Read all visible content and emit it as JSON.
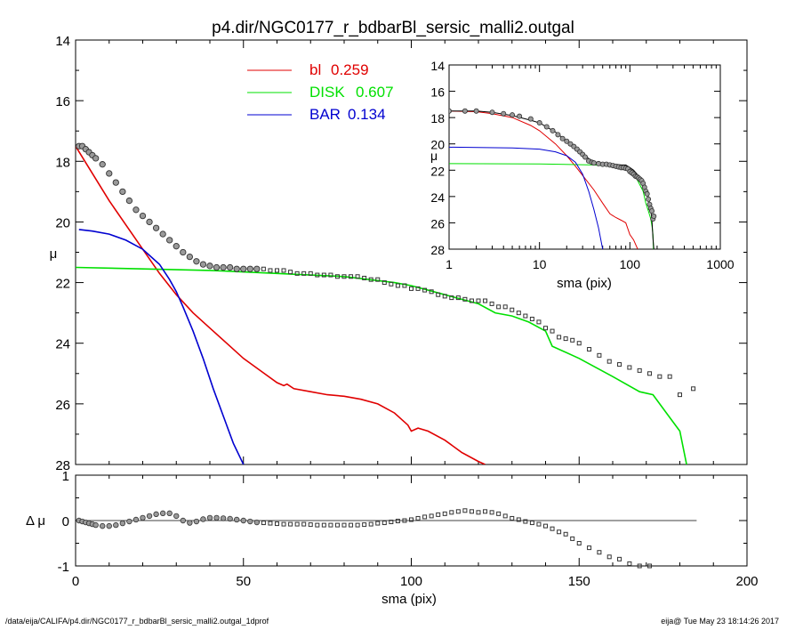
{
  "title": "p4.dir/NGC0177_r_bdbarBl_sersic_malli2.outgal",
  "footer_left": "/data/eija/CALIFA/p4.dir/NGC0177_r_bdbarBl_sersic_malli2.outgal_1dprof",
  "footer_right": "eija@  Tue May 23 18:14:26 2017",
  "colors": {
    "bulge": "#e00000",
    "disk": "#00e000",
    "bar": "#0000d0",
    "data": "#555555",
    "axes": "#000000"
  },
  "chart_data": [
    {
      "id": "main",
      "type": "line",
      "xlabel": "",
      "ylabel": "μ",
      "xlim": [
        0,
        200
      ],
      "ylim": [
        28,
        14
      ],
      "y_ticks": [
        14,
        16,
        18,
        20,
        22,
        24,
        26,
        28
      ],
      "legend": [
        {
          "label": "bl",
          "value": "0.259",
          "color": "#e00000"
        },
        {
          "label": "DISK",
          "value": "0.607",
          "color": "#00e000"
        },
        {
          "label": "BAR",
          "value": "0.134",
          "color": "#0000d0"
        }
      ],
      "series": [
        {
          "name": "bl",
          "color": "#e00000",
          "x": [
            0,
            5,
            10,
            15,
            20,
            25,
            30,
            35,
            40,
            45,
            50,
            55,
            60,
            62,
            63,
            65,
            70,
            75,
            80,
            85,
            90,
            95,
            99,
            100,
            102,
            105,
            110,
            115,
            120,
            122
          ],
          "y": [
            17.5,
            18.4,
            19.3,
            20.1,
            20.9,
            21.7,
            22.4,
            23.0,
            23.5,
            24.0,
            24.5,
            24.9,
            25.3,
            25.4,
            25.35,
            25.5,
            25.6,
            25.7,
            25.75,
            25.85,
            26.0,
            26.3,
            26.7,
            26.9,
            26.8,
            26.9,
            27.2,
            27.6,
            27.9,
            28.0
          ]
        },
        {
          "name": "DISK",
          "color": "#00e000",
          "x": [
            0,
            20,
            40,
            60,
            80,
            95,
            100,
            110,
            120,
            125,
            130,
            135,
            140,
            142,
            150,
            160,
            168,
            172,
            176,
            180,
            182
          ],
          "y": [
            21.5,
            21.55,
            21.6,
            21.7,
            21.8,
            22.0,
            22.1,
            22.4,
            22.7,
            23.0,
            23.1,
            23.3,
            23.6,
            24.1,
            24.5,
            25.1,
            25.6,
            25.7,
            26.3,
            26.9,
            28.0
          ]
        },
        {
          "name": "BAR",
          "color": "#0000d0",
          "x": [
            1,
            5,
            10,
            15,
            20,
            25,
            28,
            30,
            32,
            35,
            38,
            41,
            44,
            47,
            50
          ],
          "y": [
            20.25,
            20.3,
            20.4,
            20.6,
            20.9,
            21.4,
            21.9,
            22.3,
            22.8,
            23.6,
            24.5,
            25.5,
            26.4,
            27.3,
            28.0
          ]
        },
        {
          "name": "",
          "color": "#555555",
          "role": "data",
          "x": [
            1,
            2,
            3,
            4,
            5,
            6,
            8,
            10,
            12,
            14,
            16,
            18,
            20,
            22,
            24,
            26,
            28,
            30,
            32,
            34,
            36,
            38,
            40,
            42,
            44,
            46,
            48,
            50,
            52,
            54,
            56,
            58,
            60,
            62,
            64,
            66,
            68,
            70,
            72,
            74,
            76,
            78,
            80,
            82,
            84,
            86,
            88,
            90,
            92,
            94,
            96,
            98,
            100,
            102,
            104,
            106,
            108,
            110,
            112,
            114,
            116,
            118,
            120,
            122,
            124,
            126,
            128,
            130,
            132,
            134,
            136,
            138,
            140,
            142,
            144,
            146,
            148,
            150,
            153,
            156,
            159,
            162,
            165,
            168,
            171,
            174,
            177,
            180,
            184
          ],
          "y": [
            17.5,
            17.5,
            17.6,
            17.7,
            17.8,
            17.9,
            18.1,
            18.4,
            18.7,
            19.0,
            19.3,
            19.6,
            19.8,
            20.0,
            20.2,
            20.4,
            20.6,
            20.8,
            21.0,
            21.15,
            21.3,
            21.4,
            21.45,
            21.5,
            21.5,
            21.5,
            21.55,
            21.55,
            21.55,
            21.55,
            21.55,
            21.6,
            21.6,
            21.6,
            21.65,
            21.7,
            21.7,
            21.7,
            21.75,
            21.75,
            21.75,
            21.8,
            21.8,
            21.8,
            21.8,
            21.85,
            21.9,
            21.9,
            22.0,
            22.05,
            22.1,
            22.1,
            22.2,
            22.2,
            22.25,
            22.3,
            22.4,
            22.45,
            22.5,
            22.5,
            22.55,
            22.6,
            22.6,
            22.6,
            22.7,
            22.8,
            22.8,
            22.9,
            23.0,
            23.1,
            23.2,
            23.3,
            23.5,
            23.6,
            23.8,
            23.85,
            23.9,
            24.0,
            24.2,
            24.4,
            24.6,
            24.7,
            24.8,
            24.9,
            25.0,
            25.1,
            25.1,
            25.7,
            25.5
          ]
        }
      ]
    },
    {
      "id": "residual",
      "type": "scatter",
      "xlabel": "sma (pix)",
      "ylabel": "Δ μ",
      "xlim": [
        0,
        200
      ],
      "ylim": [
        -1,
        1
      ],
      "x_ticks": [
        0,
        50,
        100,
        150,
        200
      ],
      "y_ticks": [
        1,
        0,
        -1
      ],
      "zero_line_to": 185,
      "series": [
        {
          "name": "",
          "color": "#555555",
          "x": [
            1,
            2,
            3,
            4,
            5,
            6,
            8,
            10,
            12,
            14,
            16,
            18,
            20,
            22,
            24,
            26,
            28,
            30,
            32,
            34,
            36,
            38,
            40,
            42,
            44,
            46,
            48,
            50,
            52,
            54,
            56,
            58,
            60,
            62,
            64,
            66,
            68,
            70,
            72,
            74,
            76,
            78,
            80,
            82,
            84,
            86,
            88,
            90,
            92,
            94,
            96,
            98,
            100,
            102,
            104,
            106,
            108,
            110,
            112,
            114,
            116,
            118,
            120,
            122,
            124,
            126,
            128,
            130,
            132,
            134,
            136,
            138,
            140,
            142,
            144,
            146,
            148,
            150,
            153,
            156,
            159,
            162,
            165,
            168,
            171
          ],
          "y": [
            0.0,
            -0.02,
            -0.04,
            -0.06,
            -0.08,
            -0.1,
            -0.12,
            -0.12,
            -0.1,
            -0.06,
            -0.02,
            0.02,
            0.06,
            0.1,
            0.14,
            0.16,
            0.16,
            0.1,
            0.0,
            -0.05,
            -0.02,
            0.03,
            0.06,
            0.06,
            0.05,
            0.04,
            0.02,
            0.0,
            -0.02,
            -0.04,
            -0.05,
            -0.06,
            -0.07,
            -0.08,
            -0.08,
            -0.08,
            -0.08,
            -0.09,
            -0.1,
            -0.1,
            -0.1,
            -0.1,
            -0.1,
            -0.1,
            -0.1,
            -0.09,
            -0.08,
            -0.06,
            -0.05,
            -0.03,
            -0.01,
            0.0,
            0.02,
            0.05,
            0.08,
            0.1,
            0.13,
            0.15,
            0.18,
            0.2,
            0.22,
            0.2,
            0.18,
            0.2,
            0.18,
            0.15,
            0.1,
            0.05,
            0.02,
            -0.02,
            -0.05,
            -0.08,
            -0.12,
            -0.18,
            -0.25,
            -0.3,
            -0.4,
            -0.5,
            -0.6,
            -0.7,
            -0.8,
            -0.85,
            -0.95,
            -1.0,
            -1.0
          ]
        }
      ]
    },
    {
      "id": "inset",
      "type": "line",
      "xlabel": "sma (pix)",
      "ylabel": "μ",
      "x_scale": "log",
      "xlim": [
        1,
        1000
      ],
      "ylim": [
        28,
        14
      ],
      "x_ticks": [
        1,
        10,
        100,
        1000
      ],
      "y_ticks": [
        14,
        16,
        18,
        20,
        22,
        24,
        26,
        28
      ],
      "series": [
        {
          "name": "bl",
          "color": "#e00000",
          "x": [
            1,
            2,
            3,
            5,
            8,
            10,
            15,
            20,
            25,
            30,
            40,
            50,
            60,
            63,
            70,
            80,
            90,
            100,
            110,
            122
          ],
          "y": [
            17.5,
            17.55,
            17.7,
            18.0,
            18.6,
            19.0,
            20.0,
            20.9,
            21.7,
            22.4,
            23.5,
            24.5,
            25.3,
            25.4,
            25.6,
            25.8,
            26.0,
            26.9,
            27.3,
            28.0
          ]
        },
        {
          "name": "DISK",
          "color": "#00e000",
          "x": [
            1,
            10,
            40,
            60,
            80,
            100,
            120,
            140,
            150,
            160,
            170,
            176,
            180,
            182
          ],
          "y": [
            21.5,
            21.52,
            21.6,
            21.7,
            21.8,
            22.1,
            22.7,
            23.6,
            24.5,
            25.1,
            25.7,
            26.3,
            26.9,
            28.0
          ]
        },
        {
          "name": "BAR",
          "color": "#0000d0",
          "x": [
            1,
            5,
            10,
            15,
            20,
            25,
            30,
            35,
            40,
            45,
            50
          ],
          "y": [
            20.25,
            20.3,
            20.4,
            20.6,
            20.9,
            21.4,
            22.3,
            23.6,
            25.0,
            26.4,
            28.0
          ]
        },
        {
          "name": "",
          "color": "#000000",
          "role": "model",
          "x": [
            1,
            2,
            3,
            5,
            8,
            10,
            15,
            20,
            25,
            30,
            35,
            40,
            45,
            50,
            60,
            70,
            80,
            90,
            100,
            110,
            120,
            130,
            140,
            150,
            160,
            170,
            176,
            180,
            184
          ],
          "y": [
            17.5,
            17.5,
            17.6,
            17.85,
            18.2,
            18.4,
            19.1,
            19.8,
            20.3,
            20.8,
            21.1,
            21.35,
            21.45,
            21.45,
            21.5,
            21.55,
            21.6,
            21.6,
            21.8,
            22.0,
            22.3,
            22.6,
            23.0,
            23.4,
            24.0,
            25.0,
            26.0,
            27.2,
            28.0
          ]
        },
        {
          "name": "",
          "color": "#555555",
          "role": "data",
          "x": [
            1,
            1.5,
            2,
            3,
            4,
            5,
            6,
            8,
            10,
            12,
            14,
            16,
            18,
            20,
            22,
            24,
            26,
            28,
            30,
            32,
            35,
            38,
            40,
            45,
            50,
            55,
            60,
            65,
            70,
            75,
            80,
            85,
            90,
            95,
            100,
            105,
            110,
            115,
            120,
            125,
            130,
            135,
            140,
            145,
            150,
            155,
            160,
            165,
            170,
            175,
            180,
            184
          ],
          "y": [
            17.5,
            17.5,
            17.5,
            17.6,
            17.7,
            17.8,
            17.9,
            18.1,
            18.4,
            18.7,
            19.0,
            19.3,
            19.6,
            19.8,
            20.0,
            20.2,
            20.4,
            20.6,
            20.8,
            21.0,
            21.3,
            21.4,
            21.45,
            21.5,
            21.55,
            21.55,
            21.6,
            21.65,
            21.7,
            21.75,
            21.8,
            21.8,
            21.85,
            21.9,
            22.1,
            22.2,
            22.3,
            22.45,
            22.5,
            22.6,
            22.7,
            22.8,
            23.0,
            23.3,
            23.6,
            23.8,
            24.2,
            24.6,
            24.9,
            25.1,
            25.7,
            25.5
          ]
        }
      ]
    }
  ]
}
